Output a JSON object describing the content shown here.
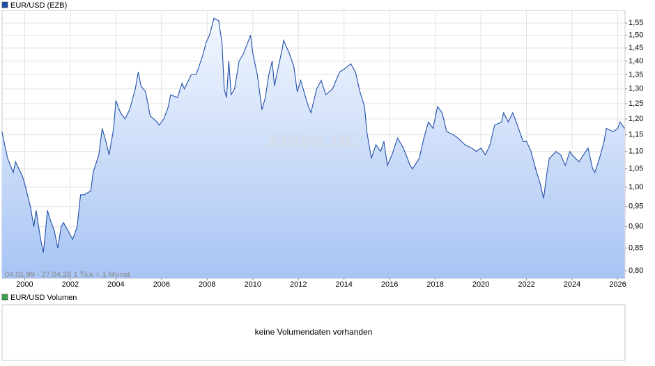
{
  "chart_data": {
    "type": "line",
    "annotation": "04.01.99 - 27.04.26   1 Tick = 1 Monat",
    "watermark": "ARIVA.DE",
    "log_scale": true,
    "grid": true,
    "legend": "top-left",
    "x": [
      1999.0,
      1999.25,
      1999.5,
      1999.6,
      1999.9,
      2000.0,
      2000.25,
      2000.4,
      2000.5,
      2000.7,
      2000.82,
      2001.0,
      2001.1,
      2001.3,
      2001.45,
      2001.6,
      2001.7,
      2001.9,
      2002.0,
      2002.1,
      2002.3,
      2002.45,
      2002.6,
      2002.9,
      2003.0,
      2003.25,
      2003.4,
      2003.6,
      2003.7,
      2003.9,
      2004.0,
      2004.2,
      2004.4,
      2004.6,
      2004.85,
      2004.98,
      2005.1,
      2005.3,
      2005.5,
      2005.8,
      2005.9,
      2006.1,
      2006.3,
      2006.4,
      2006.7,
      2006.9,
      2007.0,
      2007.3,
      2007.5,
      2007.6,
      2007.8,
      2007.95,
      2008.1,
      2008.3,
      2008.5,
      2008.65,
      2008.75,
      2008.85,
      2008.95,
      2009.05,
      2009.2,
      2009.4,
      2009.6,
      2009.9,
      2010.0,
      2010.2,
      2010.4,
      2010.55,
      2010.7,
      2010.85,
      2010.95,
      2011.1,
      2011.3,
      2011.35,
      2011.6,
      2011.8,
      2011.95,
      2012.1,
      2012.4,
      2012.55,
      2012.8,
      2013.0,
      2013.2,
      2013.5,
      2013.8,
      2014.0,
      2014.3,
      2014.5,
      2014.7,
      2014.9,
      2015.0,
      2015.2,
      2015.4,
      2015.6,
      2015.75,
      2015.9,
      2016.1,
      2016.35,
      2016.6,
      2016.9,
      2017.0,
      2017.3,
      2017.5,
      2017.7,
      2017.9,
      2018.1,
      2018.3,
      2018.5,
      2018.8,
      2019.0,
      2019.3,
      2019.6,
      2019.8,
      2020.0,
      2020.2,
      2020.4,
      2020.6,
      2020.9,
      2021.0,
      2021.2,
      2021.4,
      2021.6,
      2021.85,
      2022.0,
      2022.2,
      2022.4,
      2022.6,
      2022.75,
      2022.9,
      2023.0,
      2023.3,
      2023.5,
      2023.7,
      2023.9,
      2024.0,
      2024.3,
      2024.5,
      2024.7,
      2024.9,
      2025.0,
      2025.2,
      2025.4,
      2025.5,
      2025.8,
      2026.0,
      2026.1,
      2026.3
    ],
    "series": [
      {
        "name": "EUR/USD (EZB)",
        "color": "#1f4fa8",
        "values": [
          1.16,
          1.08,
          1.04,
          1.07,
          1.03,
          1.01,
          0.95,
          0.9,
          0.94,
          0.87,
          0.84,
          0.94,
          0.92,
          0.89,
          0.85,
          0.9,
          0.91,
          0.89,
          0.88,
          0.87,
          0.9,
          0.98,
          0.98,
          0.99,
          1.04,
          1.09,
          1.17,
          1.12,
          1.09,
          1.17,
          1.26,
          1.22,
          1.2,
          1.23,
          1.3,
          1.36,
          1.31,
          1.29,
          1.21,
          1.19,
          1.18,
          1.2,
          1.24,
          1.28,
          1.27,
          1.32,
          1.3,
          1.35,
          1.35,
          1.37,
          1.42,
          1.47,
          1.5,
          1.57,
          1.56,
          1.47,
          1.3,
          1.27,
          1.4,
          1.28,
          1.3,
          1.4,
          1.43,
          1.5,
          1.43,
          1.35,
          1.23,
          1.27,
          1.35,
          1.4,
          1.31,
          1.37,
          1.45,
          1.48,
          1.43,
          1.38,
          1.29,
          1.33,
          1.25,
          1.22,
          1.3,
          1.33,
          1.28,
          1.3,
          1.36,
          1.37,
          1.39,
          1.36,
          1.29,
          1.24,
          1.16,
          1.08,
          1.12,
          1.1,
          1.13,
          1.06,
          1.09,
          1.14,
          1.11,
          1.06,
          1.05,
          1.08,
          1.14,
          1.19,
          1.17,
          1.24,
          1.22,
          1.16,
          1.15,
          1.14,
          1.12,
          1.11,
          1.1,
          1.11,
          1.09,
          1.12,
          1.18,
          1.19,
          1.22,
          1.19,
          1.22,
          1.18,
          1.13,
          1.13,
          1.1,
          1.05,
          1.01,
          0.97,
          1.04,
          1.08,
          1.1,
          1.09,
          1.06,
          1.1,
          1.09,
          1.07,
          1.09,
          1.11,
          1.05,
          1.04,
          1.08,
          1.13,
          1.17,
          1.16,
          1.17,
          1.19,
          1.17
        ]
      }
    ],
    "xlim": [
      1999.01,
      2026.32
    ],
    "xticks": [
      2000,
      2002,
      2004,
      2006,
      2008,
      2010,
      2012,
      2014,
      2016,
      2018,
      2020,
      2022,
      2024,
      2026
    ],
    "ylim": [
      0.784,
      1.603
    ],
    "yticks": [
      {
        "value": 0.8,
        "label": "0,80"
      },
      {
        "value": 0.85,
        "label": "0,85"
      },
      {
        "value": 0.9,
        "label": "0,90"
      },
      {
        "value": 0.95,
        "label": "0,95"
      },
      {
        "value": 1.0,
        "label": "1,00"
      },
      {
        "value": 1.05,
        "label": "1,05"
      },
      {
        "value": 1.1,
        "label": "1,10"
      },
      {
        "value": 1.15,
        "label": "1,15"
      },
      {
        "value": 1.2,
        "label": "1,20"
      },
      {
        "value": 1.25,
        "label": "1,25"
      },
      {
        "value": 1.3,
        "label": "1,30"
      },
      {
        "value": 1.35,
        "label": "1,35"
      },
      {
        "value": 1.4,
        "label": "1,40"
      },
      {
        "value": 1.45,
        "label": "1,45"
      },
      {
        "value": 1.5,
        "label": "1,50"
      },
      {
        "value": 1.55,
        "label": "1,55"
      }
    ]
  },
  "volume_panel": {
    "legend": "EUR/USD Volumen",
    "color": "#3fa34d",
    "message": "keine Volumendaten vorhanden"
  }
}
